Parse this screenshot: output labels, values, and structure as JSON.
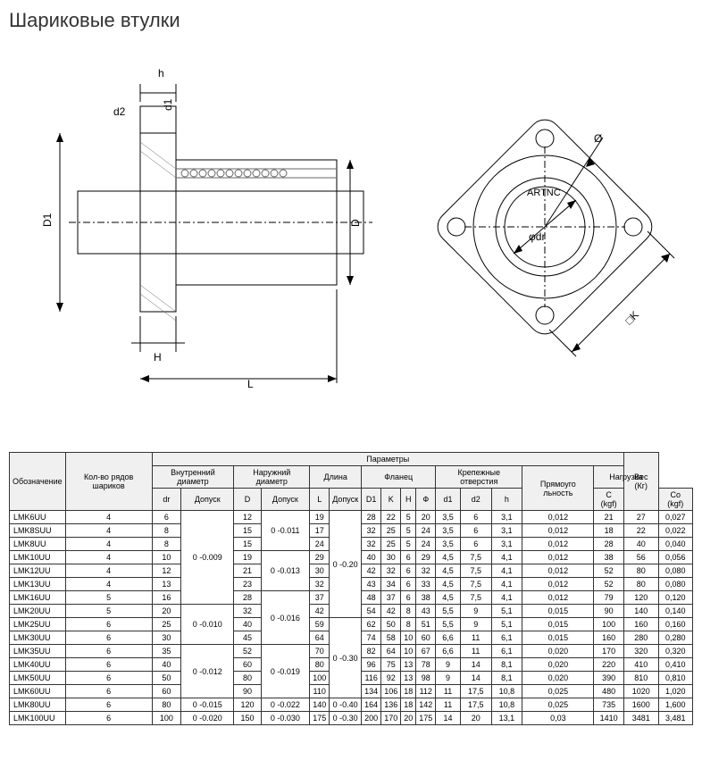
{
  "title": "Шариковые втулки",
  "diagram": {
    "labels": {
      "h": "h",
      "d1": "d1",
      "d2": "d2",
      "D1": "D1",
      "D": "D",
      "H": "H",
      "L": "L",
      "phi": "Ø",
      "phidr": "φdr",
      "K": "□K",
      "artnc": "ARTNC"
    },
    "watermark": "artnc",
    "stroke": "#000000",
    "hatch": "#666666"
  },
  "table": {
    "headers": {
      "params": "Параметры",
      "designation": "Обозначение",
      "rows_balls": "Кол-во рядов шариков",
      "inner_dia": "Внутренний диаметр",
      "outer_dia": "Наружний диаметр",
      "length": "Длина",
      "flange": "Фланец",
      "holes": "Крепежные отверстия",
      "rect": "Прямоуго льность",
      "load": "Нагрузка",
      "weight": "Вес (Кг)",
      "dr": "dr",
      "tol": "Допуск",
      "D": "D",
      "L": "L",
      "D1": "D1",
      "K": "K",
      "H": "H",
      "Phi": "Ф",
      "sd1": "d1",
      "sd2": "d2",
      "sh": "h",
      "C": "C (kgf)",
      "Co": "Co (kgf)"
    },
    "rows": [
      {
        "n": "LMK6UU",
        "b": "4",
        "dr": "6",
        "drt": "0 -0.009",
        "D": "12",
        "Dt": "0 -0.011",
        "L": "19",
        "Lt": "0 -0.20",
        "D1": "28",
        "K": "22",
        "H": "5",
        "Ph": "20",
        "d1": "3,5",
        "d2": "6",
        "h": "3,1",
        "r": "0,012",
        "C": "21",
        "Co": "27",
        "w": "0,027"
      },
      {
        "n": "LMK8SUU",
        "b": "4",
        "dr": "8",
        "drt": "",
        "D": "15",
        "Dt": "",
        "L": "17",
        "Lt": "",
        "D1": "32",
        "K": "25",
        "H": "5",
        "Ph": "24",
        "d1": "3,5",
        "d2": "6",
        "h": "3,1",
        "r": "0,012",
        "C": "18",
        "Co": "22",
        "w": "0,022"
      },
      {
        "n": "LMK8UU",
        "b": "4",
        "dr": "8",
        "drt": "",
        "D": "15",
        "Dt": "",
        "L": "24",
        "Lt": "",
        "D1": "32",
        "K": "25",
        "H": "5",
        "Ph": "24",
        "d1": "3,5",
        "d2": "6",
        "h": "3,1",
        "r": "0,012",
        "C": "28",
        "Co": "40",
        "w": "0,040"
      },
      {
        "n": "LMK10UU",
        "b": "4",
        "dr": "10",
        "drt": "",
        "D": "19",
        "Dt": "0 -0.013",
        "L": "29",
        "Lt": "",
        "D1": "40",
        "K": "30",
        "H": "6",
        "Ph": "29",
        "d1": "4,5",
        "d2": "7,5",
        "h": "4,1",
        "r": "0,012",
        "C": "38",
        "Co": "56",
        "w": "0,056"
      },
      {
        "n": "LMK12UU",
        "b": "4",
        "dr": "12",
        "drt": "",
        "D": "21",
        "Dt": "",
        "L": "30",
        "Lt": "",
        "D1": "42",
        "K": "32",
        "H": "6",
        "Ph": "32",
        "d1": "4,5",
        "d2": "7,5",
        "h": "4,1",
        "r": "0,012",
        "C": "52",
        "Co": "80",
        "w": "0,080"
      },
      {
        "n": "LMK13UU",
        "b": "4",
        "dr": "13",
        "drt": "",
        "D": "23",
        "Dt": "",
        "L": "32",
        "Lt": "",
        "D1": "43",
        "K": "34",
        "H": "6",
        "Ph": "33",
        "d1": "4,5",
        "d2": "7,5",
        "h": "4,1",
        "r": "0,012",
        "C": "52",
        "Co": "80",
        "w": "0,080"
      },
      {
        "n": "LMK16UU",
        "b": "5",
        "dr": "16",
        "drt": "",
        "D": "28",
        "Dt": "0 -0.016",
        "L": "37",
        "Lt": "",
        "D1": "48",
        "K": "37",
        "H": "6",
        "Ph": "38",
        "d1": "4,5",
        "d2": "7,5",
        "h": "4,1",
        "r": "0,012",
        "C": "79",
        "Co": "120",
        "w": "0,120"
      },
      {
        "n": "LMK20UU",
        "b": "5",
        "dr": "20",
        "drt": "0 -0.010",
        "D": "32",
        "Dt": "",
        "L": "42",
        "Lt": "",
        "D1": "54",
        "K": "42",
        "H": "8",
        "Ph": "43",
        "d1": "5,5",
        "d2": "9",
        "h": "5,1",
        "r": "0,015",
        "C": "90",
        "Co": "140",
        "w": "0,140"
      },
      {
        "n": "LMK25UU",
        "b": "6",
        "dr": "25",
        "drt": "",
        "D": "40",
        "Dt": "",
        "L": "59",
        "Lt": "0 -0.30",
        "D1": "62",
        "K": "50",
        "H": "8",
        "Ph": "51",
        "d1": "5,5",
        "d2": "9",
        "h": "5,1",
        "r": "0,015",
        "C": "100",
        "Co": "160",
        "w": "0,160"
      },
      {
        "n": "LMK30UU",
        "b": "6",
        "dr": "30",
        "drt": "",
        "D": "45",
        "Dt": "",
        "L": "64",
        "Lt": "",
        "D1": "74",
        "K": "58",
        "H": "10",
        "Ph": "60",
        "d1": "6,6",
        "d2": "11",
        "h": "6,1",
        "r": "0,015",
        "C": "160",
        "Co": "280",
        "w": "0,280"
      },
      {
        "n": "LMK35UU",
        "b": "6",
        "dr": "35",
        "drt": "0 -0.012",
        "D": "52",
        "Dt": "0 -0.019",
        "L": "70",
        "Lt": "",
        "D1": "82",
        "K": "64",
        "H": "10",
        "Ph": "67",
        "d1": "6,6",
        "d2": "11",
        "h": "6,1",
        "r": "0,020",
        "C": "170",
        "Co": "320",
        "w": "0,320"
      },
      {
        "n": "LMK40UU",
        "b": "6",
        "dr": "40",
        "drt": "",
        "D": "60",
        "Dt": "",
        "L": "80",
        "Lt": "",
        "D1": "96",
        "K": "75",
        "H": "13",
        "Ph": "78",
        "d1": "9",
        "d2": "14",
        "h": "8,1",
        "r": "0,020",
        "C": "220",
        "Co": "410",
        "w": "0,410"
      },
      {
        "n": "LMK50UU",
        "b": "6",
        "dr": "50",
        "drt": "",
        "D": "80",
        "Dt": "",
        "L": "100",
        "Lt": "",
        "D1": "116",
        "K": "92",
        "H": "13",
        "Ph": "98",
        "d1": "9",
        "d2": "14",
        "h": "8,1",
        "r": "0,020",
        "C": "390",
        "Co": "810",
        "w": "0,810"
      },
      {
        "n": "LMK60UU",
        "b": "6",
        "dr": "60",
        "drt": "",
        "D": "90",
        "Dt": "",
        "L": "110",
        "Lt": "",
        "D1": "134",
        "K": "106",
        "H": "18",
        "Ph": "112",
        "d1": "11",
        "d2": "17,5",
        "h": "10,8",
        "r": "0,025",
        "C": "480",
        "Co": "1020",
        "w": "1,020"
      },
      {
        "n": "LMK80UU",
        "b": "6",
        "dr": "80",
        "drt": "0 -0.015",
        "D": "120",
        "Dt": "0 -0.022",
        "L": "140",
        "Lt": "0 -0.40",
        "D1": "164",
        "K": "136",
        "H": "18",
        "Ph": "142",
        "d1": "11",
        "d2": "17,5",
        "h": "10,8",
        "r": "0,025",
        "C": "735",
        "Co": "1600",
        "w": "1,600"
      },
      {
        "n": "LMK100UU",
        "b": "6",
        "dr": "100",
        "drt": "0 -0.020",
        "D": "150",
        "Dt": "0 -0.030",
        "L": "175",
        "Lt": "0 -0.30",
        "D1": "200",
        "K": "170",
        "H": "20",
        "Ph": "175",
        "d1": "14",
        "d2": "20",
        "h": "13,1",
        "r": "0,03",
        "C": "1410",
        "Co": "3481",
        "w": "3,481"
      }
    ]
  }
}
